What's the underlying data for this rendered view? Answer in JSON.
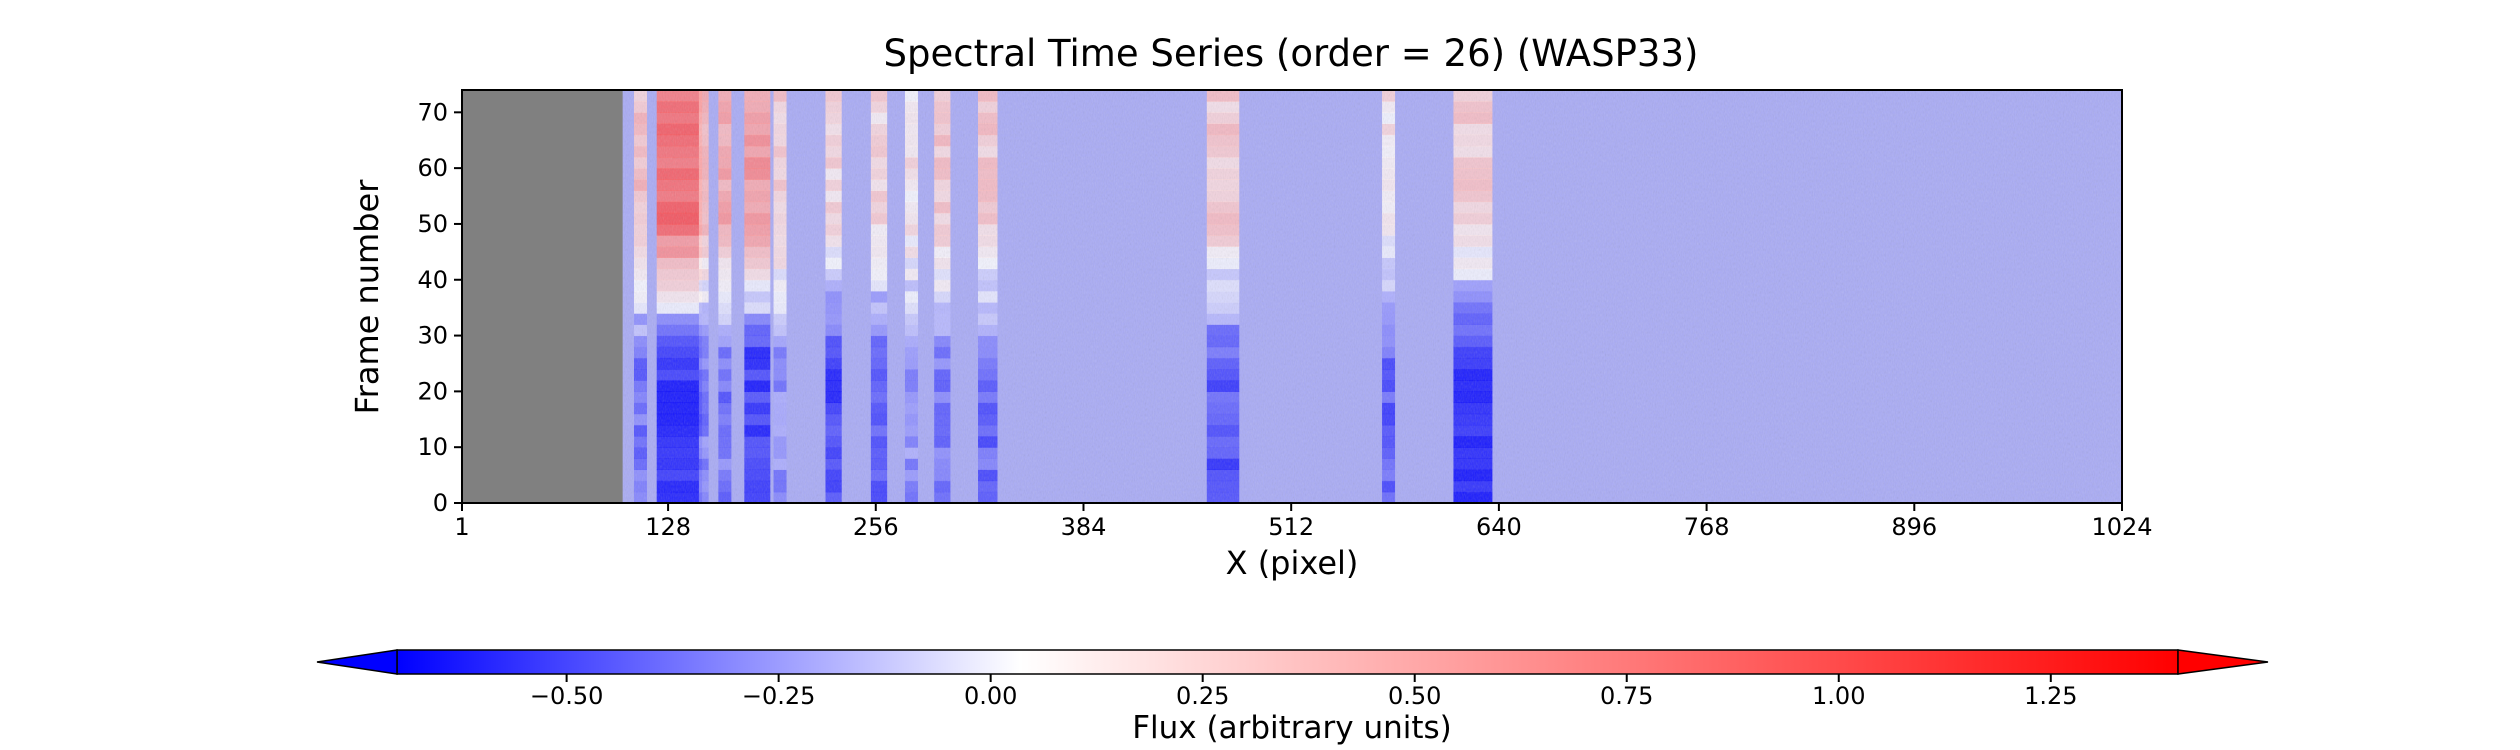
{
  "chart_data": {
    "type": "heatmap",
    "title": "Spectral Time Series (order = 26) (WASP33)",
    "xlabel": "X (pixel)",
    "ylabel": "Frame number",
    "xlim": [
      1,
      1024
    ],
    "ylim": [
      0,
      74
    ],
    "x_ticks": [
      1,
      128,
      256,
      384,
      512,
      640,
      768,
      896,
      1024
    ],
    "x_tick_labels": [
      "1",
      "128",
      "256",
      "384",
      "512",
      "640",
      "768",
      "896",
      "1024"
    ],
    "y_ticks": [
      0,
      10,
      20,
      30,
      40,
      50,
      60,
      70
    ],
    "y_tick_labels": [
      "0",
      "10",
      "20",
      "30",
      "40",
      "50",
      "60",
      "70"
    ],
    "masked_x_range": [
      1,
      100
    ],
    "masked_color": "#808080",
    "colorbar": {
      "label": "Flux (arbitrary units)",
      "cmap": "bwr",
      "vmin": -0.7,
      "vmax": 1.4,
      "extend": "both",
      "ticks": [
        -0.5,
        -0.25,
        0.0,
        0.25,
        0.5,
        0.75,
        1.0,
        1.25
      ],
      "tick_labels": [
        "−0.50",
        "−0.25",
        "0.00",
        "0.25",
        "0.50",
        "0.75",
        "1.00",
        "1.25"
      ],
      "colors": {
        "low": "#0000ff",
        "mid": "#ffffff",
        "high": "#ff0000"
      }
    },
    "features": [
      {
        "x_center": 135,
        "width": 28,
        "lower_half_value": -0.68,
        "upper_half_value": 0.9
      },
      {
        "x_center": 183,
        "width": 16,
        "lower_half_value": -0.6,
        "upper_half_value": 0.6
      },
      {
        "x_center": 163,
        "width": 8,
        "lower_half_value": -0.4,
        "upper_half_value": 0.5
      },
      {
        "x_center": 111,
        "width": 8,
        "lower_half_value": -0.4,
        "upper_half_value": 0.35
      },
      {
        "x_center": 150,
        "width": 6,
        "lower_half_value": -0.35,
        "upper_half_value": 0.4
      },
      {
        "x_center": 197,
        "width": 8,
        "lower_half_value": -0.3,
        "upper_half_value": 0.3
      },
      {
        "x_center": 230,
        "width": 10,
        "lower_half_value": -0.55,
        "upper_half_value": 0.2
      },
      {
        "x_center": 258,
        "width": 10,
        "lower_half_value": -0.45,
        "upper_half_value": 0.2
      },
      {
        "x_center": 278,
        "width": 8,
        "lower_half_value": -0.3,
        "upper_half_value": 0.15
      },
      {
        "x_center": 297,
        "width": 10,
        "lower_half_value": -0.4,
        "upper_half_value": 0.3
      },
      {
        "x_center": 325,
        "width": 12,
        "lower_half_value": -0.45,
        "upper_half_value": 0.3
      },
      {
        "x_center": 470,
        "width": 20,
        "lower_half_value": -0.5,
        "upper_half_value": 0.28
      },
      {
        "x_center": 572,
        "width": 8,
        "lower_half_value": -0.5,
        "upper_half_value": 0.15
      },
      {
        "x_center": 624,
        "width": 24,
        "lower_half_value": -0.7,
        "upper_half_value": 0.28
      }
    ]
  }
}
